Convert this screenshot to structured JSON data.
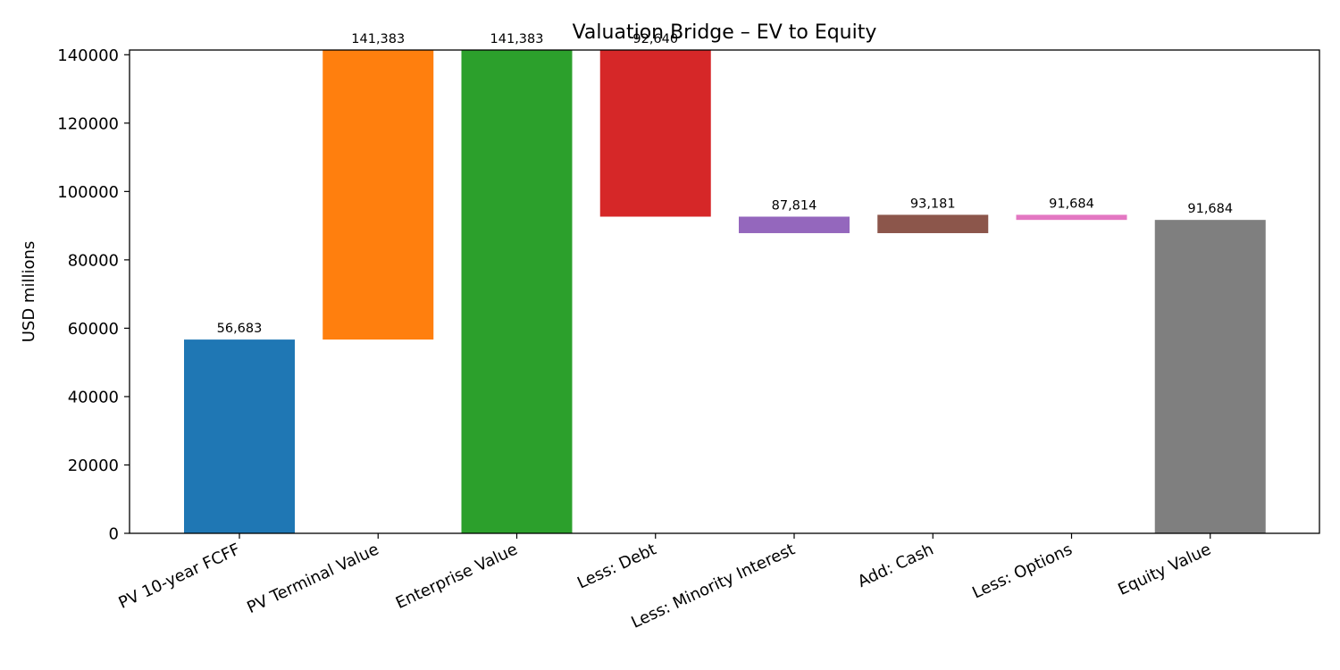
{
  "chart_data": {
    "type": "bar",
    "subtype": "waterfall",
    "title": "Valuation Bridge – EV to Equity",
    "xlabel": "",
    "ylabel": "USD millions",
    "ylim": [
      0,
      141383
    ],
    "yticks": [
      0,
      20000,
      40000,
      60000,
      80000,
      100000,
      120000,
      140000
    ],
    "ytick_labels": [
      "0",
      "20000",
      "40000",
      "60000",
      "80000",
      "100000",
      "120000",
      "140000"
    ],
    "grid": false,
    "legend": "none",
    "categories": [
      "PV 10-year FCFF",
      "PV Terminal Value",
      "Enterprise Value",
      "Less: Debt",
      "Less: Minority Interest",
      "Add: Cash",
      "Less: Options",
      "Equity Value"
    ],
    "bars": [
      {
        "category": "PV 10-year FCFF",
        "bottom": 0,
        "top": 56683,
        "label": "56,683",
        "color": "#1f77b4"
      },
      {
        "category": "PV Terminal Value",
        "bottom": 56683,
        "top": 141383,
        "label": "141,383",
        "color": "#ff7f0e"
      },
      {
        "category": "Enterprise Value",
        "bottom": 0,
        "top": 141383,
        "label": "141,383",
        "color": "#2ca02c"
      },
      {
        "category": "Less: Debt",
        "bottom": 92640,
        "top": 141383,
        "label": "92,640",
        "color": "#d62728"
      },
      {
        "category": "Less: Minority Interest",
        "bottom": 87814,
        "top": 92640,
        "label": "87,814",
        "color": "#9467bd"
      },
      {
        "category": "Add: Cash",
        "bottom": 87814,
        "top": 93181,
        "label": "93,181",
        "color": "#8c564b"
      },
      {
        "category": "Less: Options",
        "bottom": 91684,
        "top": 93181,
        "label": "91,684",
        "color": "#e377c2"
      },
      {
        "category": "Equity Value",
        "bottom": 0,
        "top": 91684,
        "label": "91,684",
        "color": "#7f7f7f"
      }
    ]
  }
}
